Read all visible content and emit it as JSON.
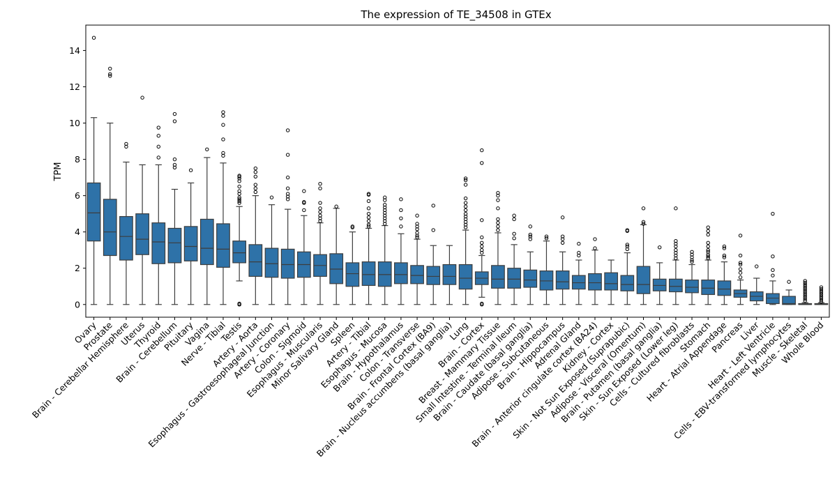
{
  "chart_data": {
    "type": "box",
    "title": "The expression of TE_34508 in GTEx",
    "xlabel": "",
    "ylabel": "TPM",
    "ylim": [
      -0.7,
      15.4
    ],
    "yticks": [
      0,
      2,
      4,
      6,
      8,
      10,
      12,
      14
    ],
    "grid": false,
    "box_color": "#2e72a8",
    "categories": [
      {
        "name": "Ovary",
        "q1": 3.5,
        "median": 5.05,
        "q3": 6.7,
        "wlo": 0,
        "whi": 10.3,
        "outliers": [
          14.7
        ]
      },
      {
        "name": "Prostate",
        "q1": 2.7,
        "median": 4.0,
        "q3": 5.8,
        "wlo": 0,
        "whi": 10.0,
        "outliers": [
          12.6,
          12.7,
          13.0
        ]
      },
      {
        "name": "Brain - Cerebellar Hemisphere",
        "q1": 2.45,
        "median": 3.75,
        "q3": 4.85,
        "wlo": 0,
        "whi": 7.85,
        "outliers": [
          8.7,
          8.85
        ]
      },
      {
        "name": "Uterus",
        "q1": 2.75,
        "median": 3.6,
        "q3": 5.0,
        "wlo": 0,
        "whi": 7.7,
        "outliers": [
          11.4
        ]
      },
      {
        "name": "Thyroid",
        "q1": 2.25,
        "median": 3.45,
        "q3": 4.5,
        "wlo": 0,
        "whi": 7.7,
        "outliers": [
          8.1,
          8.7,
          9.3,
          9.75
        ]
      },
      {
        "name": "Brain - Cerebellum",
        "q1": 2.3,
        "median": 3.4,
        "q3": 4.2,
        "wlo": 0,
        "whi": 6.35,
        "outliers": [
          7.55,
          7.7,
          8.0,
          10.1,
          10.5
        ]
      },
      {
        "name": "Pituitary",
        "q1": 2.4,
        "median": 3.2,
        "q3": 4.3,
        "wlo": 0,
        "whi": 6.7,
        "outliers": [
          7.4
        ]
      },
      {
        "name": "Vagina",
        "q1": 2.2,
        "median": 3.1,
        "q3": 4.7,
        "wlo": 0,
        "whi": 8.1,
        "outliers": [
          8.55
        ]
      },
      {
        "name": "Nerve - Tibial",
        "q1": 2.05,
        "median": 3.05,
        "q3": 4.45,
        "wlo": 0,
        "whi": 7.8,
        "outliers": [
          8.2,
          8.35,
          9.1,
          9.9,
          10.4,
          10.6
        ]
      },
      {
        "name": "Testis",
        "q1": 2.3,
        "median": 2.85,
        "q3": 3.5,
        "wlo": 1.3,
        "whi": 5.4,
        "outliers": [
          0,
          0,
          0.05,
          5.6,
          5.7,
          5.8,
          5.9,
          6.1,
          6.25,
          6.5,
          6.8,
          6.95,
          7.05,
          7.1
        ]
      },
      {
        "name": "Artery - Aorta",
        "q1": 1.55,
        "median": 2.35,
        "q3": 3.3,
        "wlo": 0,
        "whi": 6.0,
        "outliers": [
          6.2,
          6.4,
          6.6,
          7.05,
          7.3,
          7.5
        ]
      },
      {
        "name": "Esophagus - Gastroesophageal Junction",
        "q1": 1.5,
        "median": 2.25,
        "q3": 3.1,
        "wlo": 0,
        "whi": 5.5,
        "outliers": [
          5.9
        ]
      },
      {
        "name": "Artery - Coronary",
        "q1": 1.45,
        "median": 2.2,
        "q3": 3.05,
        "wlo": 0,
        "whi": 5.25,
        "outliers": [
          5.8,
          5.95,
          6.1,
          6.4,
          7.0,
          8.25,
          9.6
        ]
      },
      {
        "name": "Colon - Sigmoid",
        "q1": 1.5,
        "median": 2.2,
        "q3": 2.9,
        "wlo": 0,
        "whi": 4.9,
        "outliers": [
          5.2,
          5.6,
          5.65,
          6.25
        ]
      },
      {
        "name": "Esophagus - Muscularis",
        "q1": 1.55,
        "median": 2.15,
        "q3": 2.75,
        "wlo": 0,
        "whi": 4.5,
        "outliers": [
          4.6,
          4.75,
          4.9,
          5.1,
          5.3,
          5.6,
          6.4,
          6.65
        ]
      },
      {
        "name": "Minor Salivary Gland",
        "q1": 1.15,
        "median": 1.95,
        "q3": 2.8,
        "wlo": 0,
        "whi": 5.3,
        "outliers": [
          5.4
        ]
      },
      {
        "name": "Spleen",
        "q1": 1.0,
        "median": 1.7,
        "q3": 2.3,
        "wlo": 0,
        "whi": 4.0,
        "outliers": [
          4.25,
          4.3
        ]
      },
      {
        "name": "Artery - Tibial",
        "q1": 1.05,
        "median": 1.65,
        "q3": 2.35,
        "wlo": 0,
        "whi": 4.2,
        "outliers": [
          4.3,
          4.4,
          4.6,
          4.8,
          5.0,
          5.3,
          5.7,
          6.05,
          6.1
        ]
      },
      {
        "name": "Esophagus - Mucosa",
        "q1": 1.0,
        "median": 1.65,
        "q3": 2.35,
        "wlo": 0,
        "whi": 4.35,
        "outliers": [
          4.45,
          4.6,
          4.75,
          4.9,
          5.05,
          5.2,
          5.35,
          5.5,
          5.75,
          5.9
        ]
      },
      {
        "name": "Brain - Hypothalamus",
        "q1": 1.15,
        "median": 1.65,
        "q3": 2.3,
        "wlo": 0,
        "whi": 3.9,
        "outliers": [
          4.3,
          4.75,
          5.2,
          5.8
        ]
      },
      {
        "name": "Colon - Transverse",
        "q1": 1.15,
        "median": 1.6,
        "q3": 2.15,
        "wlo": 0,
        "whi": 3.6,
        "outliers": [
          3.7,
          3.8,
          3.95,
          4.15,
          4.3,
          4.45,
          4.9
        ]
      },
      {
        "name": "Brain - Frontal Cortex (BA9)",
        "q1": 1.1,
        "median": 1.55,
        "q3": 2.1,
        "wlo": 0,
        "whi": 3.25,
        "outliers": [
          4.1,
          5.45
        ]
      },
      {
        "name": "Brain - Nucleus accumbens (basal ganglia)",
        "q1": 1.1,
        "median": 1.55,
        "q3": 2.2,
        "wlo": 0,
        "whi": 3.25,
        "outliers": []
      },
      {
        "name": "Lung",
        "q1": 0.85,
        "median": 1.45,
        "q3": 2.2,
        "wlo": 0,
        "whi": 4.1,
        "outliers": [
          4.25,
          4.4,
          4.55,
          4.7,
          4.85,
          5.0,
          5.2,
          5.4,
          5.6,
          5.85,
          6.6,
          6.85,
          6.95
        ]
      },
      {
        "name": "Brain - Cortex",
        "q1": 1.1,
        "median": 1.45,
        "q3": 1.8,
        "wlo": 0.4,
        "whi": 2.7,
        "outliers": [
          0,
          0.05,
          2.85,
          3.0,
          3.2,
          3.4,
          3.7,
          4.65,
          7.8,
          8.5
        ]
      },
      {
        "name": "Breast - Mammary Tissue",
        "q1": 0.9,
        "median": 1.4,
        "q3": 2.15,
        "wlo": 0,
        "whi": 3.95,
        "outliers": [
          4.1,
          4.3,
          4.5,
          4.7,
          5.3,
          5.75,
          6.0,
          6.15
        ]
      },
      {
        "name": "Small Intestine - Terminal Ileum",
        "q1": 0.9,
        "median": 1.4,
        "q3": 2.0,
        "wlo": 0,
        "whi": 3.3,
        "outliers": [
          3.65,
          3.9,
          4.7,
          4.9
        ]
      },
      {
        "name": "Brain - Caudate (basal ganglia)",
        "q1": 0.95,
        "median": 1.35,
        "q3": 1.9,
        "wlo": 0,
        "whi": 2.9,
        "outliers": [
          3.6,
          3.75,
          3.85,
          4.3
        ]
      },
      {
        "name": "Adipose - Subcutaneous",
        "q1": 0.8,
        "median": 1.3,
        "q3": 1.85,
        "wlo": 0,
        "whi": 3.5,
        "outliers": [
          3.65,
          3.75
        ]
      },
      {
        "name": "Brain - Hippocampus",
        "q1": 0.85,
        "median": 1.25,
        "q3": 1.85,
        "wlo": 0,
        "whi": 2.9,
        "outliers": [
          3.4,
          3.6,
          3.75,
          4.8
        ]
      },
      {
        "name": "Adrenal Gland",
        "q1": 0.85,
        "median": 1.2,
        "q3": 1.6,
        "wlo": 0,
        "whi": 2.45,
        "outliers": [
          2.7,
          2.85,
          3.35
        ]
      },
      {
        "name": "Brain - Anterior cingulate cortex (BA24)",
        "q1": 0.8,
        "median": 1.2,
        "q3": 1.7,
        "wlo": 0,
        "whi": 3.0,
        "outliers": [
          3.1,
          3.6
        ]
      },
      {
        "name": "Kidney - Cortex",
        "q1": 0.8,
        "median": 1.15,
        "q3": 1.75,
        "wlo": 0,
        "whi": 2.45,
        "outliers": []
      },
      {
        "name": "Skin - Not Sun Exposed (Suprapubic)",
        "q1": 0.75,
        "median": 1.1,
        "q3": 1.6,
        "wlo": 0,
        "whi": 2.85,
        "outliers": [
          3.05,
          3.2,
          3.3,
          4.05,
          4.1
        ]
      },
      {
        "name": "Adipose - Visceral (Omentum)",
        "q1": 0.6,
        "median": 1.1,
        "q3": 2.1,
        "wlo": 0,
        "whi": 4.4,
        "outliers": [
          4.45,
          4.55,
          5.3
        ]
      },
      {
        "name": "Brain - Putamen (basal ganglia)",
        "q1": 0.75,
        "median": 1.05,
        "q3": 1.4,
        "wlo": 0,
        "whi": 2.3,
        "outliers": [
          3.15
        ]
      },
      {
        "name": "Skin - Sun Exposed (Lower leg)",
        "q1": 0.7,
        "median": 1.0,
        "q3": 1.4,
        "wlo": 0,
        "whi": 2.45,
        "outliers": [
          2.55,
          2.7,
          2.85,
          3.0,
          3.2,
          3.35,
          3.5,
          5.3
        ]
      },
      {
        "name": "Cells - Cultured fibroblasts",
        "q1": 0.65,
        "median": 0.95,
        "q3": 1.35,
        "wlo": 0,
        "whi": 2.2,
        "outliers": [
          2.35,
          2.45,
          2.6,
          2.75,
          2.9
        ]
      },
      {
        "name": "Stomach",
        "q1": 0.55,
        "median": 0.9,
        "q3": 1.35,
        "wlo": 0,
        "whi": 2.45,
        "outliers": [
          2.55,
          2.65,
          2.75,
          2.9,
          3.0,
          3.2,
          3.4,
          3.85,
          4.05,
          4.25
        ]
      },
      {
        "name": "Heart - Atrial Appendage",
        "q1": 0.5,
        "median": 0.85,
        "q3": 1.3,
        "wlo": 0,
        "whi": 2.35,
        "outliers": [
          2.6,
          2.7,
          3.1,
          3.2
        ]
      },
      {
        "name": "Pancreas",
        "q1": 0.4,
        "median": 0.6,
        "q3": 0.8,
        "wlo": 0,
        "whi": 1.35,
        "outliers": [
          1.5,
          1.75,
          1.95,
          2.2,
          2.3,
          2.7,
          3.8
        ]
      },
      {
        "name": "Liver",
        "q1": 0.2,
        "median": 0.45,
        "q3": 0.7,
        "wlo": 0,
        "whi": 1.45,
        "outliers": [
          2.1
        ]
      },
      {
        "name": "Heart - Left Ventricle",
        "q1": 0.05,
        "median": 0.35,
        "q3": 0.6,
        "wlo": 0,
        "whi": 1.3,
        "outliers": [
          1.6,
          1.9,
          2.65,
          5.0
        ]
      },
      {
        "name": "Cells - EBV-transformed lymphocytes",
        "q1": 0.0,
        "median": 0.05,
        "q3": 0.45,
        "wlo": 0,
        "whi": 0.8,
        "outliers": [
          1.25
        ]
      },
      {
        "name": "Muscle - Skeletal",
        "q1": 0.0,
        "median": 0.0,
        "q3": 0.05,
        "wlo": 0,
        "whi": 0.1,
        "outliers": [
          0.2,
          0.3,
          0.4,
          0.5,
          0.6,
          0.7,
          0.8,
          0.9,
          1.0,
          1.1,
          1.2,
          1.3
        ]
      },
      {
        "name": "Whole Blood",
        "q1": 0.0,
        "median": 0.0,
        "q3": 0.05,
        "wlo": 0,
        "whi": 0.1,
        "outliers": [
          0.15,
          0.25,
          0.35,
          0.45,
          0.55,
          0.65,
          0.75,
          0.85,
          0.95
        ]
      }
    ]
  }
}
